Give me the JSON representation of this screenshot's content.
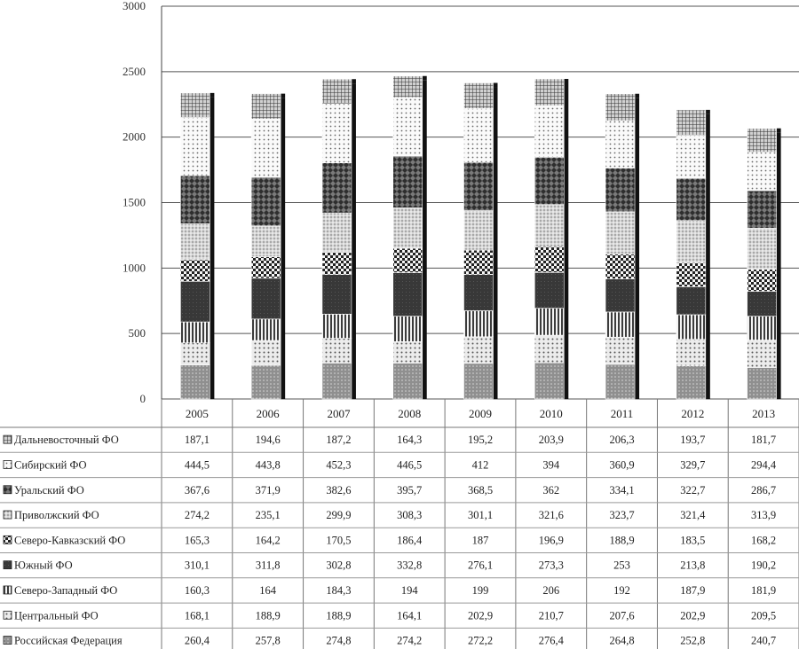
{
  "chart_data": {
    "type": "bar",
    "stacked": true,
    "categories": [
      "2005",
      "2006",
      "2007",
      "2008",
      "2009",
      "2010",
      "2011",
      "2012",
      "2013"
    ],
    "ylim": [
      0,
      3000
    ],
    "yticks": [
      0,
      500,
      1000,
      1500,
      2000,
      2500,
      3000
    ],
    "grid": true,
    "legend": "data-table-below",
    "series": [
      {
        "name": "Российская Федерация",
        "values": [
          260.4,
          257.8,
          274.8,
          274.2,
          272.2,
          276.4,
          264.8,
          252.8,
          240.7
        ],
        "fill": "#8a8a8a"
      },
      {
        "name": "Центральный ФО",
        "values": [
          168.1,
          188.9,
          188.9,
          164.1,
          202.9,
          210.7,
          207.6,
          202.9,
          209.5
        ],
        "fill": "#e0e0e0"
      },
      {
        "name": "Северо-Западный ФО",
        "values": [
          160.3,
          164,
          184.3,
          194,
          199,
          206,
          192,
          187.9,
          181.9
        ],
        "fill": "#7a7a7a"
      },
      {
        "name": "Южный ФО",
        "values": [
          310.1,
          311.8,
          302.8,
          332.8,
          276.1,
          273.3,
          253,
          213.8,
          190.2
        ],
        "fill": "#3a3a3a"
      },
      {
        "name": "Северо-Кавказский ФО",
        "values": [
          165.3,
          164.2,
          170.5,
          186.4,
          187,
          196.9,
          188.9,
          183.5,
          168.2
        ],
        "fill": "#4a4a4a"
      },
      {
        "name": "Приволжский ФО",
        "values": [
          274.2,
          235.1,
          299.9,
          308.3,
          301.1,
          321.6,
          323.7,
          321.4,
          313.9
        ],
        "fill": "#c4c4c4"
      },
      {
        "name": "Уральский ФО",
        "values": [
          367.6,
          371.9,
          382.6,
          395.7,
          368.5,
          362,
          334.1,
          322.7,
          286.7
        ],
        "fill": "#505050"
      },
      {
        "name": "Сибирский ФО",
        "values": [
          444.5,
          443.8,
          452.3,
          446.5,
          412,
          394,
          360.9,
          329.7,
          294.4
        ],
        "fill": "#f2f2f2"
      },
      {
        "name": "Дальневосточный ФО",
        "values": [
          187.1,
          194.6,
          187.2,
          164.3,
          195.2,
          203.9,
          206.3,
          193.7,
          181.7
        ],
        "fill": "#6e6e6e"
      }
    ],
    "table_rows": [
      {
        "label": "Дальневосточный ФО",
        "values": [
          "187,1",
          "194,6",
          "187,2",
          "164,3",
          "195,2",
          "203,9",
          "206,3",
          "193,7",
          "181,7"
        ]
      },
      {
        "label": "Сибирский ФО",
        "values": [
          "444,5",
          "443,8",
          "452,3",
          "446,5",
          "412",
          "394",
          "360,9",
          "329,7",
          "294,4"
        ]
      },
      {
        "label": "Уральский ФО",
        "values": [
          "367,6",
          "371,9",
          "382,6",
          "395,7",
          "368,5",
          "362",
          "334,1",
          "322,7",
          "286,7"
        ]
      },
      {
        "label": "Приволжский ФО",
        "values": [
          "274,2",
          "235,1",
          "299,9",
          "308,3",
          "301,1",
          "321,6",
          "323,7",
          "321,4",
          "313,9"
        ]
      },
      {
        "label": "Северо-Кавказский ФО",
        "values": [
          "165,3",
          "164,2",
          "170,5",
          "186,4",
          "187",
          "196,9",
          "188,9",
          "183,5",
          "168,2"
        ]
      },
      {
        "label": "Южный ФО",
        "values": [
          "310,1",
          "311,8",
          "302,8",
          "332,8",
          "276,1",
          "273,3",
          "253",
          "213,8",
          "190,2"
        ]
      },
      {
        "label": "Северо-Западный ФО",
        "values": [
          "160,3",
          "164",
          "184,3",
          "194",
          "199",
          "206",
          "192",
          "187,9",
          "181,9"
        ]
      },
      {
        "label": "Центральный ФО",
        "values": [
          "168,1",
          "188,9",
          "188,9",
          "164,1",
          "202,9",
          "210,7",
          "207,6",
          "202,9",
          "209,5"
        ]
      },
      {
        "label": "Российская Федерация",
        "values": [
          "260,4",
          "257,8",
          "274,8",
          "274,2",
          "272,2",
          "276,4",
          "264,8",
          "252,8",
          "240,7"
        ]
      }
    ]
  }
}
